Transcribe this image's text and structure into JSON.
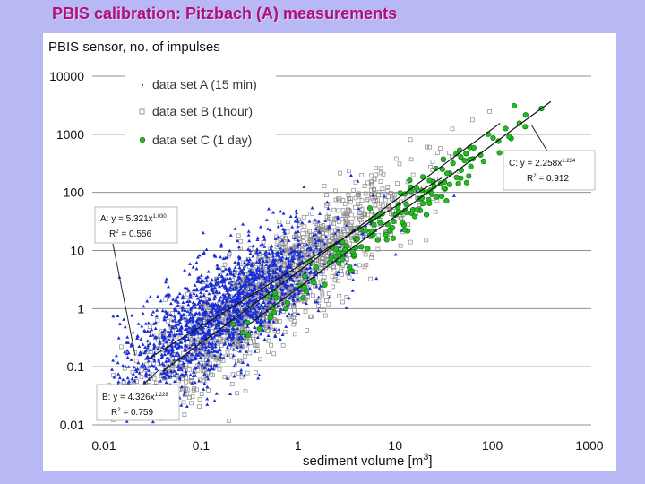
{
  "slide": {
    "title": "PBIS calibration:  Pitzbach (A) measurements"
  },
  "chart_data": {
    "type": "scatter",
    "title": "PBIS sensor, no. of impulses",
    "xlabel_prefix": "sediment volume [m",
    "xlabel_sup": "3",
    "xlabel_suffix": "]",
    "xscale": "log",
    "yscale": "log",
    "xlim": [
      0.01,
      1000
    ],
    "ylim": [
      0.01,
      10000
    ],
    "x_ticks": [
      0.01,
      0.1,
      1,
      10,
      100,
      1000
    ],
    "x_tick_labels": [
      "0.01",
      "0.1",
      "1",
      "10",
      "100",
      "1000"
    ],
    "y_ticks": [
      0.01,
      0.1,
      1,
      10,
      100,
      1000,
      10000
    ],
    "y_tick_labels": [
      "0.01",
      "0.1",
      "1",
      "10",
      "100",
      "1000",
      "10000"
    ],
    "grid": "horizontal",
    "legend_position": "top-left",
    "series": [
      {
        "name": "data set A (15 min)",
        "marker": "dot",
        "color": "#1a2ed6",
        "fit": {
          "a": 5.321,
          "b": 1.03,
          "xrange": [
            0.028,
            30
          ]
        }
      },
      {
        "name": "data set B (1hour)",
        "marker": "square",
        "color": "#8a8a8a",
        "fit": {
          "a": 4.326,
          "b": 1.228,
          "xrange": [
            0.04,
            120
          ]
        }
      },
      {
        "name": "data set C (1 day)",
        "marker": "circle",
        "color": "#22bb22",
        "fit": {
          "a": 2.258,
          "b": 1.234,
          "xrange": [
            0.3,
            400
          ]
        }
      }
    ],
    "annotations": [
      {
        "id": "A",
        "line1": "A: y = 5.321x",
        "exp": "1.030",
        "line2": "R",
        "r2_sup": "2",
        "r2_val": " = 0.556"
      },
      {
        "id": "B",
        "line1": "B: y = 4.326x",
        "exp": "1.228",
        "line2": "R",
        "r2_sup": "2",
        "r2_val": " = 0.759"
      },
      {
        "id": "C",
        "line1": "C: y = 2.258x",
        "exp": "1.234",
        "line2": "R",
        "r2_sup": "2",
        "r2_val": " = 0.912"
      }
    ]
  }
}
